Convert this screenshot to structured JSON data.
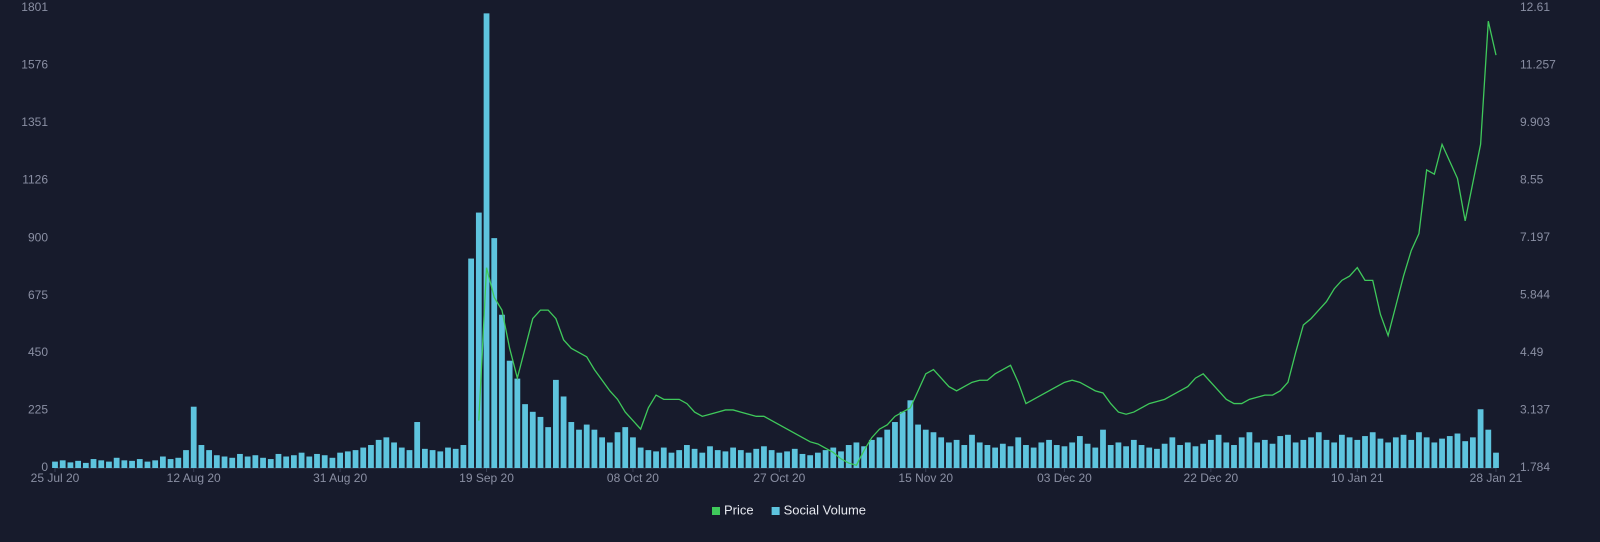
{
  "chart_data": {
    "type": "bar",
    "categories": [
      "25 Jul 20",
      "26 Jul 20",
      "27 Jul 20",
      "28 Jul 20",
      "29 Jul 20",
      "30 Jul 20",
      "31 Jul 20",
      "01 Aug 20",
      "02 Aug 20",
      "03 Aug 20",
      "04 Aug 20",
      "05 Aug 20",
      "06 Aug 20",
      "07 Aug 20",
      "08 Aug 20",
      "09 Aug 20",
      "10 Aug 20",
      "11 Aug 20",
      "12 Aug 20",
      "13 Aug 20",
      "14 Aug 20",
      "15 Aug 20",
      "16 Aug 20",
      "17 Aug 20",
      "18 Aug 20",
      "19 Aug 20",
      "20 Aug 20",
      "21 Aug 20",
      "22 Aug 20",
      "23 Aug 20",
      "24 Aug 20",
      "25 Aug 20",
      "26 Aug 20",
      "27 Aug 20",
      "28 Aug 20",
      "29 Aug 20",
      "30 Aug 20",
      "31 Aug 20",
      "01 Sep 20",
      "02 Sep 20",
      "03 Sep 20",
      "04 Sep 20",
      "05 Sep 20",
      "06 Sep 20",
      "07 Sep 20",
      "08 Sep 20",
      "09 Sep 20",
      "10 Sep 20",
      "11 Sep 20",
      "12 Sep 20",
      "13 Sep 20",
      "14 Sep 20",
      "15 Sep 20",
      "16 Sep 20",
      "17 Sep 20",
      "18 Sep 20",
      "19 Sep 20",
      "20 Sep 20",
      "21 Sep 20",
      "22 Sep 20",
      "23 Sep 20",
      "24 Sep 20",
      "25 Sep 20",
      "26 Sep 20",
      "27 Sep 20",
      "28 Sep 20",
      "29 Sep 20",
      "30 Sep 20",
      "01 Oct 20",
      "02 Oct 20",
      "03 Oct 20",
      "04 Oct 20",
      "05 Oct 20",
      "06 Oct 20",
      "07 Oct 20",
      "08 Oct 20",
      "09 Oct 20",
      "10 Oct 20",
      "11 Oct 20",
      "12 Oct 20",
      "13 Oct 20",
      "14 Oct 20",
      "15 Oct 20",
      "16 Oct 20",
      "17 Oct 20",
      "18 Oct 20",
      "19 Oct 20",
      "20 Oct 20",
      "21 Oct 20",
      "22 Oct 20",
      "23 Oct 20",
      "24 Oct 20",
      "25 Oct 20",
      "26 Oct 20",
      "27 Oct 20",
      "28 Oct 20",
      "29 Oct 20",
      "30 Oct 20",
      "31 Oct 20",
      "01 Nov 20",
      "02 Nov 20",
      "03 Nov 20",
      "04 Nov 20",
      "05 Nov 20",
      "06 Nov 20",
      "07 Nov 20",
      "08 Nov 20",
      "09 Nov 20",
      "10 Nov 20",
      "11 Nov 20",
      "12 Nov 20",
      "13 Nov 20",
      "14 Nov 20",
      "15 Nov 20",
      "16 Nov 20",
      "17 Nov 20",
      "18 Nov 20",
      "19 Nov 20",
      "20 Nov 20",
      "21 Nov 20",
      "22 Nov 20",
      "23 Nov 20",
      "24 Nov 20",
      "25 Nov 20",
      "26 Nov 20",
      "27 Nov 20",
      "28 Nov 20",
      "29 Nov 20",
      "30 Nov 20",
      "01 Dec 20",
      "02 Dec 20",
      "03 Dec 20",
      "04 Dec 20",
      "05 Dec 20",
      "06 Dec 20",
      "07 Dec 20",
      "08 Dec 20",
      "09 Dec 20",
      "10 Dec 20",
      "11 Dec 20",
      "12 Dec 20",
      "13 Dec 20",
      "14 Dec 20",
      "15 Dec 20",
      "16 Dec 20",
      "17 Dec 20",
      "18 Dec 20",
      "19 Dec 20",
      "20 Dec 20",
      "21 Dec 20",
      "22 Dec 20",
      "23 Dec 20",
      "24 Dec 20",
      "25 Dec 20",
      "26 Dec 20",
      "27 Dec 20",
      "28 Dec 20",
      "29 Dec 20",
      "30 Dec 20",
      "31 Dec 20",
      "01 Jan 21",
      "02 Jan 21",
      "03 Jan 21",
      "04 Jan 21",
      "05 Jan 21",
      "06 Jan 21",
      "07 Jan 21",
      "08 Jan 21",
      "09 Jan 21",
      "10 Jan 21",
      "11 Jan 21",
      "12 Jan 21",
      "13 Jan 21",
      "14 Jan 21",
      "15 Jan 21",
      "16 Jan 21",
      "17 Jan 21",
      "18 Jan 21",
      "19 Jan 21",
      "20 Jan 21",
      "21 Jan 21",
      "22 Jan 21",
      "23 Jan 21",
      "24 Jan 21",
      "25 Jan 21",
      "26 Jan 21",
      "27 Jan 21",
      "28 Jan 21"
    ],
    "xticks": [
      "25 Jul 20",
      "12 Aug 20",
      "31 Aug 20",
      "19 Sep 20",
      "08 Oct 20",
      "27 Oct 20",
      "15 Nov 20",
      "03 Dec 20",
      "22 Dec 20",
      "10 Jan 21",
      "28 Jan 21"
    ],
    "ylim": [
      0,
      1801
    ],
    "yticks": [
      0,
      225,
      450,
      675,
      900,
      1126,
      1351,
      1576,
      1801
    ],
    "y2lim": [
      1.784,
      12.61
    ],
    "y2ticks": [
      1.784,
      3.137,
      4.49,
      5.844,
      7.197,
      8.55,
      9.903,
      11.257,
      12.61
    ],
    "legend": "bottom",
    "series": [
      {
        "name": "Price",
        "type": "line",
        "axis": "y2",
        "color": "#3fc95b",
        "values": [
          null,
          null,
          null,
          null,
          null,
          null,
          null,
          null,
          null,
          null,
          null,
          null,
          null,
          null,
          null,
          null,
          null,
          null,
          null,
          null,
          null,
          null,
          null,
          null,
          null,
          null,
          null,
          null,
          null,
          null,
          null,
          null,
          null,
          null,
          null,
          null,
          null,
          null,
          null,
          null,
          null,
          null,
          null,
          null,
          null,
          null,
          null,
          null,
          null,
          null,
          null,
          null,
          null,
          null,
          null,
          2.9,
          6.5,
          5.8,
          5.5,
          4.6,
          3.9,
          4.6,
          5.3,
          5.5,
          5.5,
          5.3,
          4.8,
          4.6,
          4.5,
          4.4,
          4.1,
          3.85,
          3.6,
          3.4,
          3.1,
          2.9,
          2.7,
          3.2,
          3.5,
          3.4,
          3.4,
          3.4,
          3.3,
          3.1,
          3.0,
          3.05,
          3.1,
          3.15,
          3.15,
          3.1,
          3.05,
          3.0,
          3.0,
          2.9,
          2.8,
          2.7,
          2.6,
          2.5,
          2.4,
          2.35,
          2.25,
          2.15,
          2.0,
          1.9,
          1.85,
          2.2,
          2.5,
          2.7,
          2.8,
          3.0,
          3.1,
          3.2,
          3.6,
          4.0,
          4.1,
          3.9,
          3.7,
          3.6,
          3.7,
          3.8,
          3.85,
          3.85,
          4.0,
          4.1,
          4.2,
          3.8,
          3.3,
          3.4,
          3.5,
          3.6,
          3.7,
          3.8,
          3.85,
          3.8,
          3.7,
          3.6,
          3.55,
          3.3,
          3.1,
          3.05,
          3.1,
          3.2,
          3.3,
          3.35,
          3.4,
          3.5,
          3.6,
          3.7,
          3.9,
          4.0,
          3.8,
          3.6,
          3.4,
          3.3,
          3.3,
          3.4,
          3.45,
          3.5,
          3.5,
          3.6,
          3.8,
          4.5,
          5.15,
          5.3,
          5.5,
          5.7,
          6.0,
          6.2,
          6.3,
          6.5,
          6.2,
          6.2,
          5.4,
          4.9,
          5.6,
          6.3,
          6.9,
          7.3,
          8.8,
          8.7,
          9.4,
          9.0,
          8.6,
          7.6,
          8.5,
          9.4,
          12.3,
          11.5
        ]
      },
      {
        "name": "Social Volume",
        "type": "bar",
        "color": "#5ec4de",
        "values": [
          25,
          30,
          22,
          28,
          20,
          35,
          30,
          25,
          40,
          30,
          28,
          35,
          25,
          30,
          45,
          35,
          40,
          70,
          240,
          90,
          70,
          50,
          45,
          40,
          55,
          45,
          50,
          40,
          35,
          55,
          45,
          50,
          60,
          45,
          55,
          50,
          40,
          60,
          65,
          70,
          80,
          90,
          110,
          120,
          100,
          80,
          70,
          180,
          75,
          70,
          65,
          80,
          75,
          90,
          820,
          1000,
          1780,
          900,
          600,
          420,
          350,
          250,
          220,
          200,
          160,
          345,
          280,
          180,
          150,
          170,
          150,
          120,
          100,
          140,
          160,
          120,
          80,
          70,
          65,
          80,
          60,
          70,
          90,
          75,
          60,
          85,
          70,
          65,
          80,
          70,
          60,
          75,
          85,
          70,
          60,
          65,
          75,
          55,
          50,
          60,
          70,
          80,
          65,
          90,
          100,
          85,
          110,
          120,
          150,
          180,
          220,
          265,
          170,
          150,
          140,
          120,
          100,
          110,
          90,
          130,
          100,
          90,
          80,
          95,
          85,
          120,
          90,
          80,
          100,
          110,
          90,
          85,
          100,
          125,
          95,
          80,
          150,
          90,
          100,
          85,
          110,
          90,
          80,
          75,
          95,
          120,
          90,
          100,
          85,
          95,
          110,
          130,
          100,
          90,
          120,
          140,
          100,
          110,
          95,
          125,
          130,
          100,
          110,
          120,
          140,
          110,
          100,
          130,
          120,
          110,
          125,
          140,
          115,
          100,
          120,
          130,
          110,
          140,
          120,
          100,
          115,
          125,
          135,
          105,
          120,
          230,
          150,
          60
        ]
      }
    ]
  }
}
